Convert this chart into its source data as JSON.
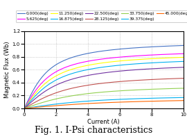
{
  "title": "Fig. 1. I-Psi characteristics",
  "xlabel": "Current (A)",
  "ylabel": "Magnetic Flux (Wb)",
  "xlim": [
    0,
    10
  ],
  "ylim": [
    0,
    1.2
  ],
  "xticks": [
    0,
    2,
    4,
    6,
    8,
    10
  ],
  "yticks": [
    0.0,
    0.2,
    0.4,
    0.6,
    0.8,
    1.0,
    1.2
  ],
  "legend_labels": [
    "0.000(deg)",
    "5.625(deg)",
    "11.250(deg)",
    "16.875(deg)",
    "22.500(deg)",
    "28.125(deg)",
    "33.750(deg)",
    "39.375(deg)",
    "45.000(deg)"
  ],
  "colors": [
    "#4472C4",
    "#FF00FF",
    "#FFFF00",
    "#00B0F0",
    "#7030A0",
    "#C0504D",
    "#92D050",
    "#00B0F0",
    "#FF6600"
  ],
  "end_vals": [
    1.06,
    0.93,
    0.88,
    0.82,
    0.73,
    0.55,
    0.38,
    0.22,
    0.17
  ],
  "knee": [
    2.0,
    2.2,
    2.5,
    2.8,
    3.2,
    3.8,
    4.5,
    6.0,
    7.5
  ],
  "background_color": "#FFFFFF",
  "grid_color": "#AAAAAA",
  "legend_fontsize": 4.2,
  "axis_fontsize": 6,
  "title_fontsize": 9
}
